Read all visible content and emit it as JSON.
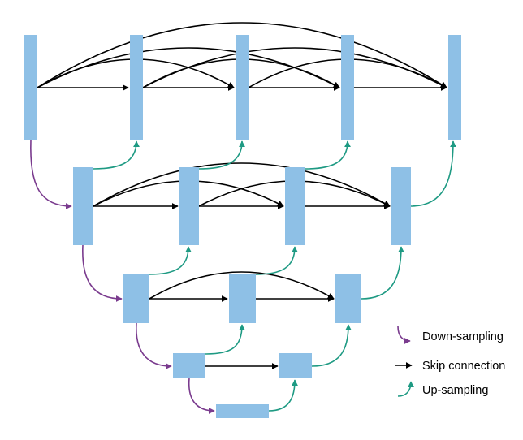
{
  "colors": {
    "block": "#8ec0e6",
    "skip": "#000000",
    "down": "#7a3b8e",
    "up": "#1e9a83"
  },
  "legend": {
    "down_label": "Down-sampling",
    "skip_label": "Skip connection",
    "up_label": "Up-sampling"
  }
}
